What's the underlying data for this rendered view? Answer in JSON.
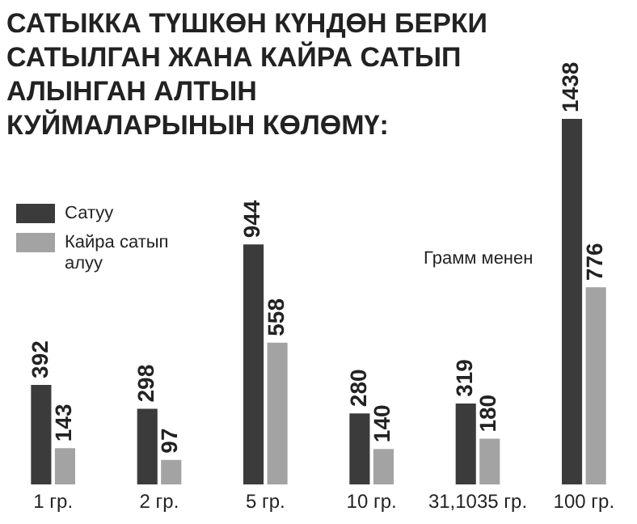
{
  "chart_data": {
    "type": "bar",
    "title": "САТЫККА ТҮШКӨН КҮНДӨН БЕРКИ САТЫЛГАН ЖАНА КАЙРА САТЫП АЛЫНГАН АЛТЫН КУЙМАЛАРЫНЫН КӨЛӨМҮ:",
    "categories": [
      "1 гр.",
      "2 гр.",
      "5 гр.",
      "10 гр.",
      "31,1035 гр.",
      "100 гр."
    ],
    "series": [
      {
        "name": "Сатуу",
        "color": "#3b3b3b",
        "values": [
          392,
          298,
          944,
          280,
          319,
          1438
        ]
      },
      {
        "name": "Кайра сатып алуу",
        "color": "#a3a3a3",
        "values": [
          143,
          97,
          558,
          140,
          180,
          776
        ]
      }
    ],
    "annotations": [
      "Грамм менен"
    ],
    "data_labels": true,
    "legend": "top left",
    "grid": false
  }
}
